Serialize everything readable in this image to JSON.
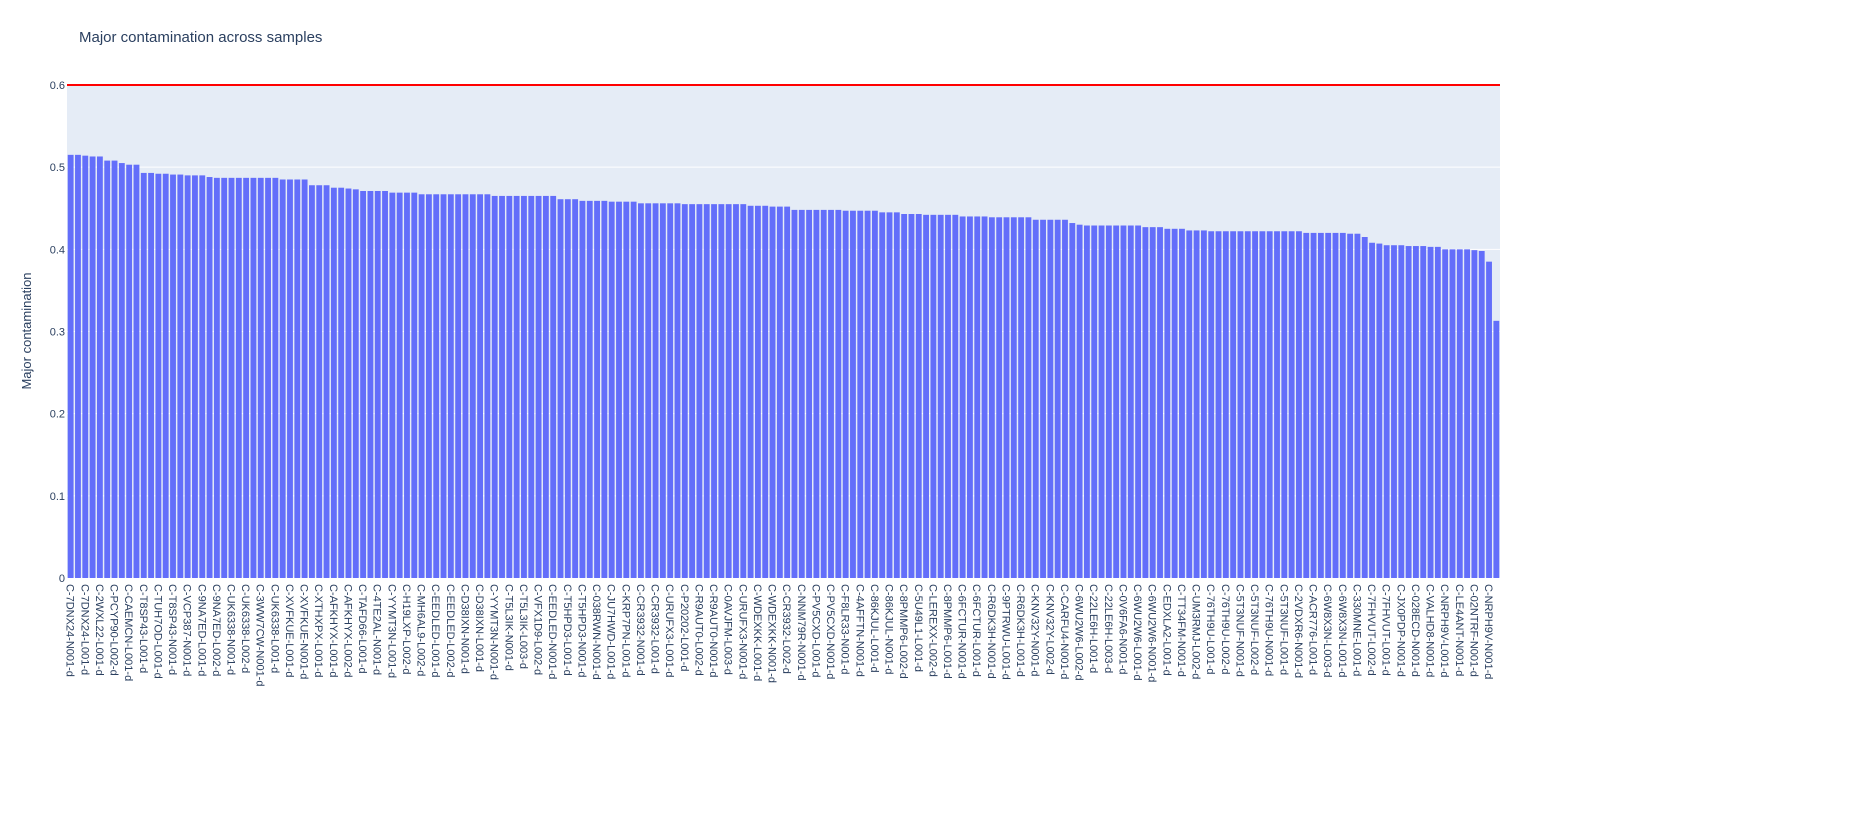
{
  "chart_data": {
    "type": "bar",
    "title": "Major contamination across samples",
    "y_label": "Major contamination",
    "color": "#636efa",
    "threshold": 0.6,
    "threshold_color": "#ff0000",
    "grid": true,
    "ylim": [
      0,
      0.6
    ],
    "yticks": [
      0,
      0.1,
      0.2,
      0.3,
      0.4,
      0.5,
      0.6
    ],
    "categories": [
      "C-7DNX24-N001-d",
      null,
      "C-7DNX24-L001-d",
      null,
      "C-2WXL22-L001-d",
      null,
      "C-PCYP90-L002-d",
      null,
      "C-CAEMCN-L001-d",
      null,
      "C-T8SP43-L001-d",
      null,
      "C-TUH7OD-L001-d",
      null,
      "C-T8SP43-N001-d",
      null,
      "C-VCP387-N001-d",
      null,
      "C-9NA7ED-L001-d",
      null,
      "C-9NA7ED-L002-d",
      null,
      "C-UK6338-N001-d",
      null,
      "C-UK6338-L002-d",
      null,
      "C-3WW7CW-N001-d",
      null,
      "C-UK6338-L001-d",
      null,
      "C-XVFKUE-L001-d",
      null,
      "C-XVFKUE-N001-d",
      null,
      "C-XTHXPX-L001-d",
      null,
      "C-AFKHYX-L001-d",
      null,
      "C-AFKHYX-L002-d",
      null,
      "C-TAFD66-L001-d",
      null,
      "C-4TE2AL-N001-d",
      null,
      "C-YYMT3N-L001-d",
      null,
      "C-H19LXP-L002-d",
      null,
      "C-MH6AL9-L002-d",
      null,
      "C-EEDLED-L001-d",
      null,
      "C-EEDLED-L002-d",
      null,
      "C-D38IXN-N001-d",
      null,
      "C-D38IXN-L001-d",
      null,
      "C-YYMT3N-N001-d",
      null,
      "C-T5L3IK-N001-d",
      null,
      "C-T5L3IK-L003-d",
      null,
      "C-VFX1D9-L002-d",
      null,
      "C-EEDLED-N001-d",
      null,
      "C-T5HPD3-L001-d",
      null,
      "C-T5HPD3-N001-d",
      null,
      "C-038RWN-N001-d",
      null,
      "C-JU7HWD-L001-d",
      null,
      "C-KRP7PN-L001-d",
      null,
      "C-CR3932-N001-d",
      null,
      "C-CR3932-L001-d",
      null,
      "C-URUFX3-L001-d",
      null,
      "C-P20202-L001-d",
      null,
      "C-R9AUT0-L002-d",
      null,
      "C-R9AUT0-N001-d",
      null,
      "C-0AVJFM-L003-d",
      null,
      "C-URUFX3-N001-d",
      null,
      "C-WDEXKK-L001-d",
      null,
      "C-WDEXKK-N001-d",
      null,
      "C-CR3932-L002-d",
      null,
      "C-NNM79R-N001-d",
      null,
      "C-PV5CXD-L001-d",
      null,
      "C-PV5CXD-N001-d",
      null,
      "C-F8LR33-N001-d",
      null,
      "C-4AFFTN-N001-d",
      null,
      "C-86KJUL-L001-d",
      null,
      "C-86KJUL-N001-d",
      null,
      "C-8PMMP6-L002-d",
      null,
      "C-5U49L1-L001-d",
      null,
      "C-LEREXX-L002-d",
      null,
      "C-8PMMP6-L001-d",
      null,
      "C-6FCTUR-N001-d",
      null,
      "C-6FCTUR-L001-d",
      null,
      "C-R6DK3H-N001-d",
      null,
      "C-9PTRWU-L001-d",
      null,
      "C-R6DK3H-L001-d",
      null,
      "C-KNV32Y-N001-d",
      null,
      "C-KNV32Y-L002-d",
      null,
      "C-CARFU4-N001-d",
      null,
      "C-6WU2W6-L002-d",
      null,
      "C-22LE6H-L001-d",
      null,
      "C-22LE6H-L003-d",
      null,
      "C-0V6FA6-N001-d",
      null,
      "C-6WU2W6-L001-d",
      null,
      "C-6WU2W6-N001-d",
      null,
      "C-EDXLA2-L001-d",
      null,
      "C-TT34FM-N001-d",
      null,
      "C-UM3RMJ-L002-d",
      null,
      "C-76TH9U-L001-d",
      null,
      "C-76TH9U-L002-d",
      null,
      "C-5T3NUF-N001-d",
      null,
      "C-5T3NUF-L002-d",
      null,
      "C-76TH9U-N001-d",
      null,
      "C-5T3NUF-L001-d",
      null,
      "C-2VDXR6-N001-d",
      null,
      "C-ACR776-L001-d",
      null,
      "C-6W8X3N-L003-d",
      null,
      "C-6W8X3N-L001-d",
      null,
      "C-330MNE-L001-d",
      null,
      "C-7FHVUT-L002-d",
      null,
      "C-7FHVUT-L001-d",
      null,
      "C-JX0PDP-N001-d",
      null,
      "C-028ECD-N001-d",
      null,
      "C-VALHD8-N001-d",
      null,
      "C-NRPH9V-L001-d",
      null,
      "C-LE4ANT-N001-d",
      null,
      "C-02NTRF-N001-d",
      null,
      "C-NRPH9V-N001-d",
      null
    ],
    "values": [
      0.515,
      0.515,
      0.514,
      0.513,
      0.513,
      0.508,
      0.508,
      0.505,
      0.503,
      0.503,
      0.493,
      0.493,
      0.492,
      0.492,
      0.491,
      0.491,
      0.49,
      0.49,
      0.49,
      0.488,
      0.487,
      0.487,
      0.487,
      0.487,
      0.487,
      0.487,
      0.487,
      0.487,
      0.487,
      0.485,
      0.485,
      0.485,
      0.485,
      0.478,
      0.478,
      0.478,
      0.475,
      0.475,
      0.474,
      0.473,
      0.471,
      0.471,
      0.471,
      0.471,
      0.469,
      0.469,
      0.469,
      0.469,
      0.467,
      0.467,
      0.467,
      0.467,
      0.467,
      0.467,
      0.467,
      0.467,
      0.467,
      0.467,
      0.465,
      0.465,
      0.465,
      0.465,
      0.465,
      0.465,
      0.465,
      0.465,
      0.465,
      0.461,
      0.461,
      0.461,
      0.459,
      0.459,
      0.459,
      0.459,
      0.458,
      0.458,
      0.458,
      0.458,
      0.456,
      0.456,
      0.456,
      0.456,
      0.456,
      0.456,
      0.455,
      0.455,
      0.455,
      0.455,
      0.455,
      0.455,
      0.455,
      0.455,
      0.455,
      0.453,
      0.453,
      0.453,
      0.452,
      0.452,
      0.452,
      0.448,
      0.448,
      0.448,
      0.448,
      0.448,
      0.448,
      0.448,
      0.447,
      0.447,
      0.447,
      0.447,
      0.447,
      0.445,
      0.445,
      0.445,
      0.443,
      0.443,
      0.443,
      0.442,
      0.442,
      0.442,
      0.442,
      0.442,
      0.44,
      0.44,
      0.44,
      0.44,
      0.439,
      0.439,
      0.439,
      0.439,
      0.439,
      0.439,
      0.436,
      0.436,
      0.436,
      0.436,
      0.436,
      0.432,
      0.43,
      0.429,
      0.429,
      0.429,
      0.429,
      0.429,
      0.429,
      0.429,
      0.429,
      0.427,
      0.427,
      0.427,
      0.425,
      0.425,
      0.425,
      0.423,
      0.423,
      0.423,
      0.422,
      0.422,
      0.422,
      0.422,
      0.422,
      0.422,
      0.422,
      0.422,
      0.422,
      0.422,
      0.422,
      0.422,
      0.422,
      0.42,
      0.42,
      0.42,
      0.42,
      0.42,
      0.42,
      0.419,
      0.419,
      0.415,
      0.408,
      0.407,
      0.405,
      0.405,
      0.405,
      0.404,
      0.404,
      0.404,
      0.403,
      0.403,
      0.4,
      0.4,
      0.4,
      0.4,
      0.399,
      0.398,
      0.385,
      0.313
    ]
  }
}
